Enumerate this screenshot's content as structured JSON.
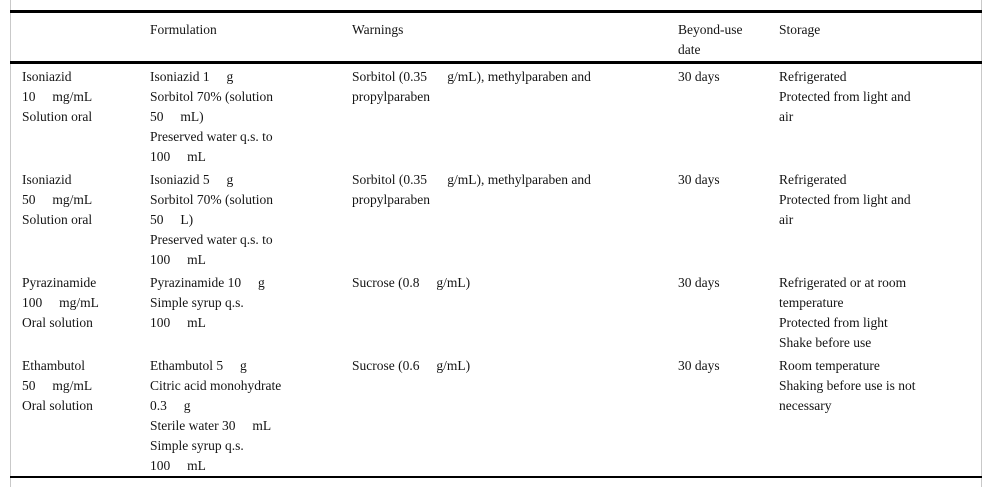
{
  "table": {
    "headers": [
      "",
      "Formulation",
      "Warnings",
      "Beyond-use\ndate",
      "Storage"
    ],
    "rows": [
      {
        "drug": "Isoniazid\n10     mg/mL\nSolution oral",
        "formulation": "Isoniazid 1     g\nSorbitol 70% (solution\n50     mL)\nPreserved water q.s. to\n100     mL",
        "warnings": "Sorbitol (0.35      g/mL), methylparaben and\npropylparaben",
        "beyond_use_date": "30 days",
        "storage": "Refrigerated\nProtected from light and\nair"
      },
      {
        "drug": "Isoniazid\n50     mg/mL\nSolution oral",
        "formulation": "Isoniazid 5     g\nSorbitol 70% (solution\n50     L)\nPreserved water q.s. to\n100     mL",
        "warnings": "Sorbitol (0.35      g/mL), methylparaben and\npropylparaben",
        "beyond_use_date": "30 days",
        "storage": "Refrigerated\nProtected from light and\nair"
      },
      {
        "drug": "Pyrazinamide\n100     mg/mL\nOral solution",
        "formulation": "Pyrazinamide 10     g\nSimple syrup q.s.\n100     mL",
        "warnings": "Sucrose (0.8     g/mL)",
        "beyond_use_date": "30 days",
        "storage": "Refrigerated or at room\ntemperature\nProtected from light\nShake before use"
      },
      {
        "drug": "Ethambutol\n50     mg/mL\nOral solution",
        "formulation": "Ethambutol 5     g\nCitric acid monohydrate\n0.3     g\nSterile water 30     mL\nSimple syrup q.s.\n100     mL",
        "warnings": "Sucrose (0.6     g/mL)",
        "beyond_use_date": "30 days",
        "storage": "Room temperature\nShaking before use is not\nnecessary"
      }
    ]
  }
}
